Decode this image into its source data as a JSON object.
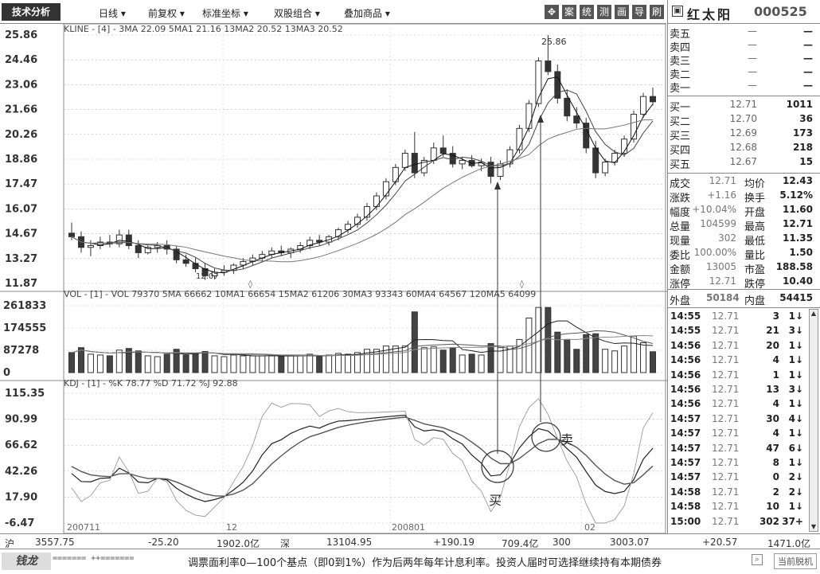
{
  "toolbar": {
    "brand": "技术分析",
    "menus": [
      "日线 ▾",
      "前复权 ▾",
      "标准坐标 ▾",
      "双股组合 ▾",
      "叠加商品 ▾"
    ],
    "tool_buttons": [
      "案",
      "统",
      "测",
      "画",
      "导",
      "刷"
    ]
  },
  "stock": {
    "icon": "▣",
    "name": "红太阳",
    "code": "000525"
  },
  "kline": {
    "header": "KLINE - [4] - 3MA 22.09  5MA1 21.16  13MA2 20.52  13MA3 20.52",
    "peak_label": "25.86",
    "low_label": "12.07",
    "y_labels": [
      "25.86",
      "24.46",
      "23.06",
      "21.66",
      "20.26",
      "18.86",
      "17.47",
      "16.07",
      "14.67",
      "13.27",
      "11.87"
    ]
  },
  "volume": {
    "header": "VOL - [1] - VOL 79370  5MA 66662  10MA1 66654  15MA2 61206  30MA3 93343  60MA4 64567  120MA5 64099",
    "y_labels": [
      "261833",
      "174555",
      "87278",
      "0"
    ]
  },
  "kdj": {
    "header": "KDJ - [1] - %K 78.77  %D 71.72  %J 92.88",
    "y_labels": [
      "115.35",
      "90.99",
      "66.62",
      "42.26",
      "17.90",
      "-6.47"
    ],
    "buy_label": "买",
    "sell_label": "卖"
  },
  "x_labels": [
    "200711",
    "12",
    "200801",
    "02"
  ],
  "chart_data": {
    "type": "candlestick",
    "title": "",
    "ylim": [
      11.87,
      25.86
    ],
    "candles": [
      [
        14.7,
        15.3,
        14.3,
        14.5
      ],
      [
        14.5,
        14.8,
        13.6,
        13.9
      ],
      [
        13.9,
        14.3,
        13.4,
        14.0
      ],
      [
        14.0,
        14.5,
        13.8,
        14.2
      ],
      [
        14.2,
        14.6,
        13.9,
        14.1
      ],
      [
        14.1,
        14.9,
        13.9,
        14.6
      ],
      [
        14.6,
        14.9,
        13.8,
        14.0
      ],
      [
        14.0,
        14.3,
        13.3,
        13.6
      ],
      [
        13.6,
        14.0,
        13.5,
        13.9
      ],
      [
        13.9,
        14.2,
        13.6,
        14.0
      ],
      [
        14.0,
        14.3,
        13.5,
        13.8
      ],
      [
        13.8,
        14.0,
        13.0,
        13.2
      ],
      [
        13.2,
        13.5,
        12.8,
        13.0
      ],
      [
        13.0,
        13.3,
        12.5,
        12.7
      ],
      [
        12.7,
        13.0,
        12.07,
        12.3
      ],
      [
        12.3,
        12.7,
        12.1,
        12.5
      ],
      [
        12.5,
        12.9,
        12.3,
        12.6
      ],
      [
        12.6,
        13.0,
        12.4,
        12.9
      ],
      [
        12.9,
        13.3,
        12.7,
        13.1
      ],
      [
        13.1,
        13.5,
        12.9,
        13.3
      ],
      [
        13.3,
        13.7,
        13.1,
        13.5
      ],
      [
        13.5,
        13.9,
        13.3,
        13.7
      ],
      [
        13.7,
        14.0,
        13.4,
        13.6
      ],
      [
        13.6,
        13.9,
        13.3,
        13.8
      ],
      [
        13.8,
        14.2,
        13.6,
        14.0
      ],
      [
        14.0,
        14.5,
        13.8,
        14.3
      ],
      [
        14.3,
        14.6,
        14.0,
        14.2
      ],
      [
        14.2,
        14.6,
        14.0,
        14.5
      ],
      [
        14.5,
        15.0,
        14.3,
        14.9
      ],
      [
        14.9,
        15.4,
        14.7,
        15.2
      ],
      [
        15.2,
        15.8,
        15.0,
        15.6
      ],
      [
        15.6,
        16.4,
        15.4,
        16.2
      ],
      [
        16.2,
        17.0,
        16.0,
        16.8
      ],
      [
        16.8,
        17.8,
        16.6,
        17.6
      ],
      [
        17.6,
        18.6,
        17.4,
        18.4
      ],
      [
        18.4,
        19.4,
        18.2,
        19.2
      ],
      [
        19.2,
        20.4,
        17.8,
        18.1
      ],
      [
        18.1,
        19.0,
        17.9,
        18.8
      ],
      [
        18.8,
        19.8,
        18.6,
        19.5
      ],
      [
        19.5,
        20.2,
        19.0,
        19.2
      ],
      [
        19.2,
        19.6,
        18.4,
        18.6
      ],
      [
        18.6,
        19.0,
        18.3,
        18.8
      ],
      [
        18.8,
        19.1,
        18.4,
        18.5
      ],
      [
        18.5,
        18.9,
        18.2,
        18.7
      ],
      [
        18.7,
        19.0,
        17.5,
        17.9
      ],
      [
        17.9,
        18.8,
        17.7,
        18.6
      ],
      [
        18.6,
        19.6,
        18.4,
        19.4
      ],
      [
        19.4,
        20.8,
        19.2,
        20.6
      ],
      [
        20.6,
        22.2,
        20.4,
        22.0
      ],
      [
        22.0,
        24.6,
        21.8,
        24.4
      ],
      [
        24.4,
        25.86,
        23.6,
        23.8
      ],
      [
        23.8,
        24.2,
        22.0,
        22.3
      ],
      [
        22.3,
        22.8,
        21.0,
        21.3
      ],
      [
        21.3,
        21.8,
        20.6,
        20.9
      ],
      [
        20.9,
        21.2,
        19.2,
        19.5
      ],
      [
        19.5,
        19.9,
        17.8,
        18.1
      ],
      [
        18.1,
        18.9,
        17.9,
        18.7
      ],
      [
        18.7,
        19.4,
        18.5,
        19.2
      ],
      [
        19.2,
        20.2,
        19.0,
        20.0
      ],
      [
        20.0,
        21.6,
        19.8,
        21.4
      ],
      [
        21.4,
        22.6,
        21.2,
        22.4
      ],
      [
        22.4,
        22.9,
        21.9,
        22.1
      ]
    ]
  },
  "quote": {
    "sell": [
      {
        "label": "卖五",
        "price": "—",
        "vol": "—"
      },
      {
        "label": "卖四",
        "price": "—",
        "vol": "—"
      },
      {
        "label": "卖三",
        "price": "—",
        "vol": "—"
      },
      {
        "label": "卖二",
        "price": "—",
        "vol": "—"
      },
      {
        "label": "卖一",
        "price": "—",
        "vol": "—"
      }
    ],
    "buy": [
      {
        "label": "买一",
        "price": "12.71",
        "vol": "1011"
      },
      {
        "label": "买二",
        "price": "12.70",
        "vol": "36"
      },
      {
        "label": "买三",
        "price": "12.69",
        "vol": "173"
      },
      {
        "label": "买四",
        "price": "12.68",
        "vol": "218"
      },
      {
        "label": "买五",
        "price": "12.67",
        "vol": "15"
      }
    ],
    "stats": [
      {
        "l1": "成交",
        "v1": "12.71",
        "l2": "均价",
        "v2": "12.43"
      },
      {
        "l1": "涨跌",
        "v1": "+1.16",
        "l2": "换手",
        "v2": "5.12%"
      },
      {
        "l1": "幅度",
        "v1": "+10.04%",
        "l2": "开盘",
        "v2": "11.60"
      },
      {
        "l1": "总量",
        "v1": "104599",
        "l2": "最高",
        "v2": "12.71"
      },
      {
        "l1": "现量",
        "v1": "302",
        "l2": "最低",
        "v2": "11.35"
      },
      {
        "l1": "委比",
        "v1": "100.00%",
        "l2": "量比",
        "v2": "1.50"
      },
      {
        "l1": "金额",
        "v1": "13005",
        "l2": "市盈",
        "v2": "188.58"
      },
      {
        "l1": "涨停",
        "v1": "12.71",
        "l2": "跌停",
        "v2": "10.40"
      }
    ],
    "outer": {
      "l1": "外盘",
      "v1": "50184",
      "l2": "内盘",
      "v2": "54415"
    }
  },
  "ticks": [
    {
      "t": "14:55",
      "p": "12.71",
      "v": "3",
      "n": "1↓"
    },
    {
      "t": "14:55",
      "p": "12.71",
      "v": "21",
      "n": "3↓"
    },
    {
      "t": "14:56",
      "p": "12.71",
      "v": "20",
      "n": "1↓"
    },
    {
      "t": "14:56",
      "p": "12.71",
      "v": "4",
      "n": "1↓"
    },
    {
      "t": "14:56",
      "p": "12.71",
      "v": "1",
      "n": "1↓"
    },
    {
      "t": "14:56",
      "p": "12.71",
      "v": "13",
      "n": "3↓"
    },
    {
      "t": "14:56",
      "p": "12.71",
      "v": "4",
      "n": "1↓"
    },
    {
      "t": "14:57",
      "p": "12.71",
      "v": "30",
      "n": "4↓"
    },
    {
      "t": "14:57",
      "p": "12.71",
      "v": "4",
      "n": "1↓"
    },
    {
      "t": "14:57",
      "p": "12.71",
      "v": "47",
      "n": "6↓"
    },
    {
      "t": "14:57",
      "p": "12.71",
      "v": "8",
      "n": "1↓"
    },
    {
      "t": "14:57",
      "p": "12.71",
      "v": "0",
      "n": "2↓"
    },
    {
      "t": "14:58",
      "p": "12.71",
      "v": "2",
      "n": "2↓"
    },
    {
      "t": "14:58",
      "p": "12.71",
      "v": "10",
      "n": "1↓"
    },
    {
      "t": "15:00",
      "p": "12.71",
      "v": "302",
      "n": "37+"
    }
  ],
  "status": {
    "sh_label": "沪",
    "sh_index": "3557.75",
    "sh_change": "-25.20",
    "sh_amount": "1902.0亿",
    "sz_label": "深",
    "sz_index": "13104.95",
    "sz_change": "+190.19",
    "sz_amount": "709.4亿",
    "c300_label": "300",
    "c300_index": "3003.07",
    "c300_change": "+20.57",
    "c300_amount": "1471.0亿"
  },
  "bottom": {
    "logo": "钱龙",
    "tabs": "======= ++=======",
    "ticker": "调票面利率0—100个基点（即0到1%）作为后两年每年计息利率。投资人届时可选择继续持有本期债券",
    "offline": "当前脱机"
  }
}
